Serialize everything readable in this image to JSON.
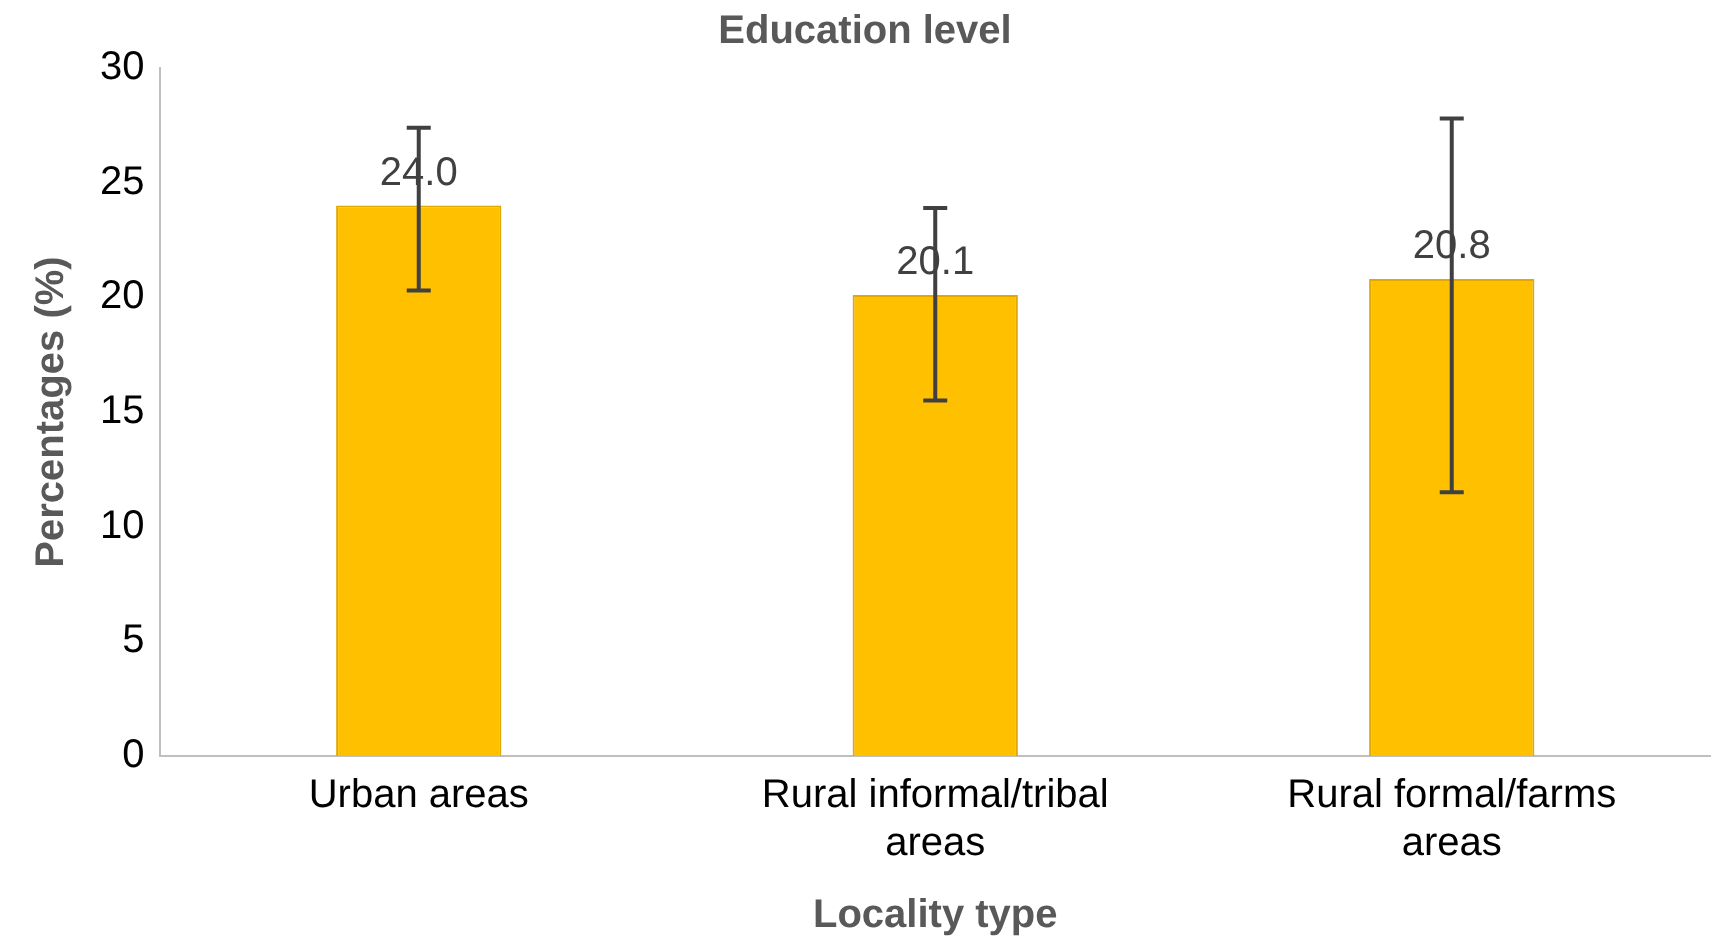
{
  "chart_data": {
    "type": "bar",
    "title": "Education level",
    "xlabel": "Locality type",
    "ylabel": "Percentages (%)",
    "categories": [
      "Urban areas",
      "Rural informal/tribal areas",
      "Rural formal/farms areas"
    ],
    "values": [
      24.0,
      20.1,
      20.8
    ],
    "color": "#ffc000",
    "errors": [
      [
        20.3,
        27.4
      ],
      [
        15.5,
        23.9
      ],
      [
        11.5,
        27.8
      ]
    ],
    "value_labels": [
      "24.0",
      "20.1",
      "20.8"
    ],
    "ylim": [
      0,
      30
    ],
    "yticks": [
      0,
      5,
      10,
      15,
      20,
      25,
      30
    ],
    "grid": false
  }
}
